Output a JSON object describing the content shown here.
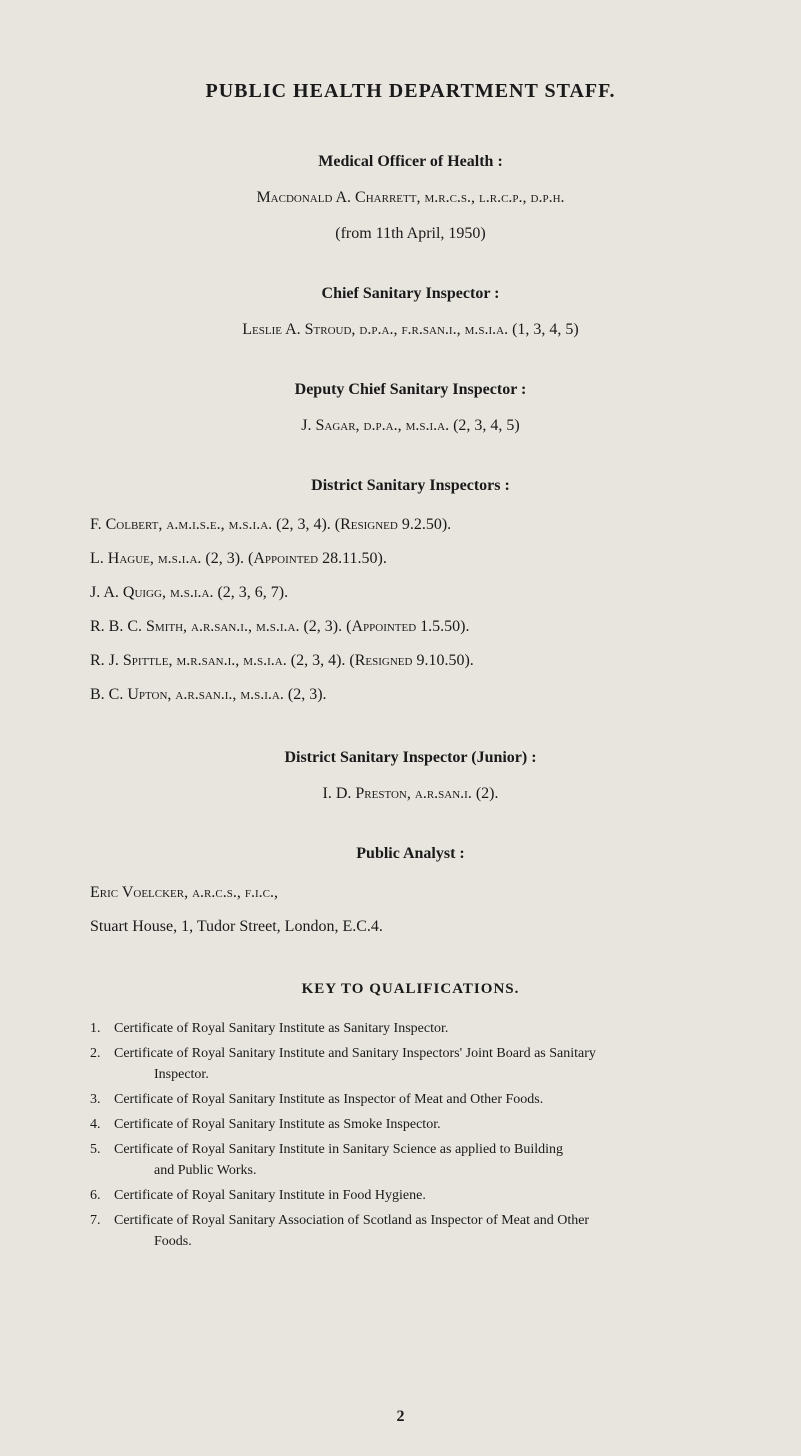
{
  "title": "PUBLIC HEALTH DEPARTMENT STAFF.",
  "sections": {
    "moh": {
      "header": "Medical Officer of Health :",
      "name": "Macdonald A. Charrett, m.r.c.s., l.r.c.p., d.p.h.",
      "note": "(from 11th April, 1950)"
    },
    "csi": {
      "header": "Chief Sanitary Inspector :",
      "name": "Leslie A. Stroud, d.p.a., f.r.san.i., m.s.i.a. (1, 3, 4, 5)"
    },
    "dcsi": {
      "header": "Deputy Chief Sanitary Inspector :",
      "name": "J. Sagar, d.p.a., m.s.i.a. (2, 3, 4, 5)"
    },
    "dsi": {
      "header": "District Sanitary Inspectors :",
      "items": [
        "F. Colbert, a.m.i.s.e., m.s.i.a. (2, 3, 4). (Resigned 9.2.50).",
        "L. Hague, m.s.i.a. (2, 3). (Appointed 28.11.50).",
        "J. A. Quigg, m.s.i.a. (2, 3, 6, 7).",
        "R. B. C. Smith, a.r.san.i., m.s.i.a. (2, 3). (Appointed 1.5.50).",
        "R. J. Spittle, m.r.san.i., m.s.i.a. (2, 3, 4). (Resigned 9.10.50).",
        "B. C. Upton, a.r.san.i., m.s.i.a. (2, 3)."
      ]
    },
    "dsij": {
      "header": "District Sanitary Inspector (Junior) :",
      "name": "I. D. Preston, a.r.san.i. (2)."
    },
    "pa": {
      "header": "Public Analyst :",
      "line1": "Eric Voelcker, a.r.c.s., f.i.c.,",
      "line2": "Stuart House, 1, Tudor Street, London, E.C.4."
    }
  },
  "key": {
    "title": "KEY TO QUALIFICATIONS.",
    "items": [
      {
        "num": "1.",
        "text": "Certificate of Royal Sanitary Institute as Sanitary Inspector."
      },
      {
        "num": "2.",
        "text": "Certificate of Royal Sanitary Institute and Sanitary Inspectors' Joint Board as Sanitary",
        "indent": "Inspector."
      },
      {
        "num": "3.",
        "text": "Certificate of Royal Sanitary Institute as Inspector of Meat and Other Foods."
      },
      {
        "num": "4.",
        "text": "Certificate of Royal Sanitary Institute as Smoke Inspector."
      },
      {
        "num": "5.",
        "text": "Certificate of Royal Sanitary Institute in Sanitary Science as applied to Building",
        "indent": "and Public Works."
      },
      {
        "num": "6.",
        "text": "Certificate of Royal Sanitary Institute in Food Hygiene."
      },
      {
        "num": "7.",
        "text": "Certificate of Royal Sanitary Association of Scotland as Inspector of Meat and Other",
        "indent": "Foods."
      }
    ]
  },
  "pageNumber": "2",
  "colors": {
    "background": "#e8e5de",
    "text": "#1a1a1a"
  },
  "typography": {
    "title_fontsize": 20,
    "section_header_fontsize": 16,
    "body_fontsize": 16,
    "key_title_fontsize": 15,
    "key_body_fontsize": 14,
    "font_family": "Georgia, Times New Roman, serif"
  }
}
